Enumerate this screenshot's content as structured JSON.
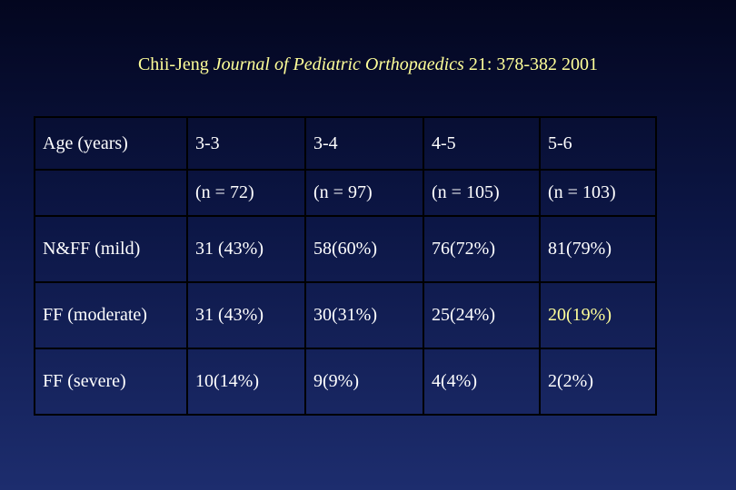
{
  "header": {
    "author": "Chii-Jeng",
    "journal": "Journal of Pediatric Orthopaedics",
    "details": "21: 378-382 2001"
  },
  "table": {
    "rows": [
      [
        "Age (years)",
        "3-3",
        "3-4",
        "4-5",
        "5-6"
      ],
      [
        null,
        "(n = 72)",
        "(n = 97)",
        "(n = 105)",
        "(n = 103)"
      ],
      [
        "N&FF (mild)",
        "31 (43%)",
        "58(60%)",
        "76(72%)",
        "81(79%)"
      ],
      [
        "FF (moderate)",
        "31 (43%)",
        "30(31%)",
        "25(24%)",
        "20(19%)"
      ],
      [
        "FF (severe)",
        "10(14%)",
        "9(9%)",
        "4(4%)",
        "2(2%)"
      ]
    ],
    "text_color": "#ffffff",
    "highlight_color": "#ffff99",
    "highlight_cells": [
      [
        3,
        4
      ]
    ]
  }
}
